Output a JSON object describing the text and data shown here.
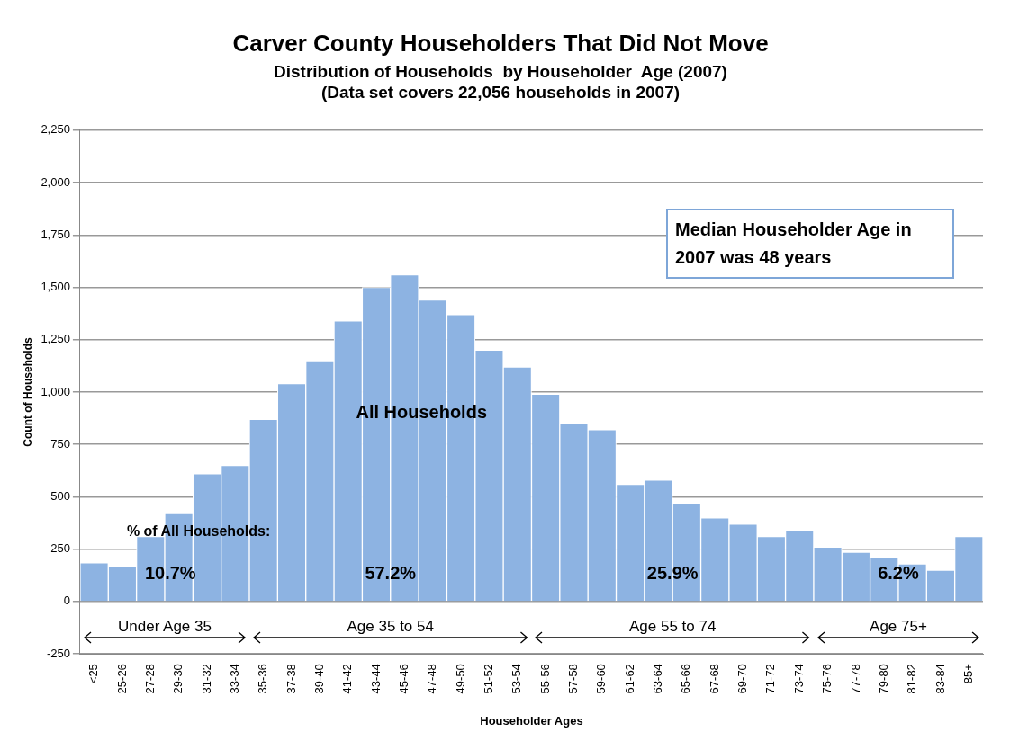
{
  "chart_data": {
    "type": "bar",
    "title": "Carver County Householders That Did Not Move",
    "subtitle": "Distribution of Households  by Householder  Age (2007)",
    "xlabel": "Householder Ages",
    "ylabel": "Count of Households",
    "categories": [
      "<25",
      "25-26",
      "27-28",
      "29-30",
      "31-32",
      "33-34",
      "35-36",
      "37-38",
      "39-40",
      "41-42",
      "43-44",
      "45-46",
      "47-48",
      "49-50",
      "51-52",
      "53-54",
      "55-56",
      "57-58",
      "59-60",
      "61-62",
      "63-64",
      "65-66",
      "67-68",
      "69-70",
      "71-72",
      "73-74",
      "75-76",
      "77-78",
      "79-80",
      "81-82",
      "83-84",
      "85+"
    ],
    "values": [
      185,
      170,
      310,
      420,
      610,
      650,
      870,
      1040,
      1150,
      1340,
      1500,
      1560,
      1440,
      1370,
      1200,
      1120,
      990,
      850,
      820,
      560,
      580,
      470,
      400,
      370,
      310,
      340,
      260,
      235,
      210,
      180,
      150,
      310
    ],
    "color": "#8db3e2",
    "ylim": [
      -250,
      2250
    ],
    "yticks": [
      -250,
      0,
      250,
      500,
      750,
      {
        "value": 1000,
        "label": "1,000"
      },
      {
        "value": 1250,
        "label": "1,250"
      },
      {
        "value": 1500,
        "label": "1,500"
      },
      {
        "value": 1750,
        "label": "1,750"
      },
      {
        "value": 2000,
        "label": "2,000"
      },
      {
        "value": 2250,
        "label": "2,250"
      }
    ],
    "grid": "y",
    "annotations": [
      "(Data set covers 22,056 households in 2007)",
      "Median Householder Age in 2007 was 48 years",
      "All Households",
      "% of All Households:",
      "10.7%",
      "57.2%",
      "25.9%",
      "6.2%",
      "Under Age 35",
      "Age 35 to 54",
      "Age 55 to 74",
      "Age 75+"
    ]
  }
}
